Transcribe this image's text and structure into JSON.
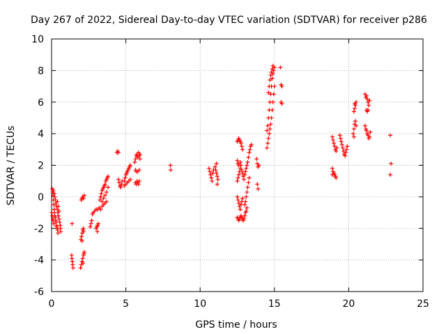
{
  "chart_data": {
    "type": "scatter",
    "title": "Day 267 of 2022, Sidereal Day-to-day VTEC variation (SDTVAR) for receiver p286",
    "xlabel": "GPS time / hours",
    "ylabel": "SDTVAR / TECUs",
    "xlim": [
      0,
      25
    ],
    "ylim": [
      -6,
      10
    ],
    "xticks": [
      0,
      5,
      10,
      15,
      20,
      25
    ],
    "yticks": [
      -6,
      -4,
      -2,
      0,
      2,
      4,
      6,
      8,
      10
    ],
    "grid": true,
    "marker": "+",
    "color": "#ff0000",
    "series": [
      {
        "name": "SDTVAR",
        "points": [
          [
            0.05,
            0.5
          ],
          [
            0.08,
            0.3
          ],
          [
            0.1,
            0.1
          ],
          [
            0.12,
            -0.2
          ],
          [
            0.15,
            -0.5
          ],
          [
            0.18,
            -0.8
          ],
          [
            0.2,
            -1.0
          ],
          [
            0.22,
            -1.2
          ],
          [
            0.25,
            -1.3
          ],
          [
            0.28,
            -1.5
          ],
          [
            0.3,
            -1.6
          ],
          [
            0.33,
            -1.8
          ],
          [
            0.35,
            -1.9
          ],
          [
            0.38,
            -2.0
          ],
          [
            0.4,
            -2.1
          ],
          [
            0.43,
            -2.3
          ],
          [
            0.12,
            0.4
          ],
          [
            0.18,
            0.2
          ],
          [
            0.22,
            0.0
          ],
          [
            0.26,
            -0.2
          ],
          [
            0.3,
            -0.4
          ],
          [
            0.34,
            -0.6
          ],
          [
            0.38,
            -0.8
          ],
          [
            0.42,
            -1.0
          ],
          [
            0.46,
            -1.2
          ],
          [
            0.5,
            -1.4
          ],
          [
            0.54,
            -1.6
          ],
          [
            0.58,
            -1.8
          ],
          [
            0.6,
            -2.0
          ],
          [
            0.62,
            -2.2
          ],
          [
            0.02,
            -1.0
          ],
          [
            0.05,
            -1.2
          ],
          [
            0.08,
            -1.4
          ],
          [
            0.1,
            -1.5
          ],
          [
            0.14,
            -1.7
          ],
          [
            0.4,
            -0.3
          ],
          [
            0.45,
            -0.6
          ],
          [
            0.5,
            -0.9
          ],
          [
            1.35,
            -3.7
          ],
          [
            1.37,
            -3.9
          ],
          [
            1.4,
            -4.1
          ],
          [
            1.42,
            -4.3
          ],
          [
            1.45,
            -4.5
          ],
          [
            1.38,
            -1.7
          ],
          [
            1.95,
            -4.5
          ],
          [
            2.0,
            -4.3
          ],
          [
            2.05,
            -4.1
          ],
          [
            2.1,
            -3.9
          ],
          [
            2.15,
            -3.7
          ],
          [
            2.18,
            -3.6
          ],
          [
            2.2,
            -3.5
          ],
          [
            2.12,
            -4.2
          ],
          [
            1.98,
            -2.7
          ],
          [
            2.02,
            -2.5
          ],
          [
            2.06,
            -2.3
          ],
          [
            2.1,
            -2.1
          ],
          [
            2.14,
            -2.0
          ],
          [
            2.05,
            -2.8
          ],
          [
            2.15,
            -2.2
          ],
          [
            2.0,
            -0.2
          ],
          [
            2.05,
            -0.1
          ],
          [
            2.1,
            0.0
          ],
          [
            2.15,
            -0.1
          ],
          [
            2.2,
            0.1
          ],
          [
            2.6,
            -1.9
          ],
          [
            2.65,
            -1.7
          ],
          [
            2.7,
            -1.5
          ],
          [
            2.75,
            -1.1
          ],
          [
            2.8,
            -1.0
          ],
          [
            2.9,
            -0.9
          ],
          [
            3.0,
            -0.8
          ],
          [
            3.0,
            -2.0
          ],
          [
            3.05,
            -1.9
          ],
          [
            3.1,
            -1.8
          ],
          [
            3.15,
            -1.7
          ],
          [
            3.08,
            -2.2
          ],
          [
            3.1,
            -0.8
          ],
          [
            3.2,
            -0.7
          ],
          [
            3.3,
            -0.8
          ],
          [
            3.4,
            -0.6
          ],
          [
            3.5,
            -0.5
          ],
          [
            3.6,
            -0.4
          ],
          [
            3.7,
            -0.3
          ],
          [
            3.25,
            -0.2
          ],
          [
            3.3,
            0.0
          ],
          [
            3.35,
            0.2
          ],
          [
            3.4,
            0.4
          ],
          [
            3.45,
            0.5
          ],
          [
            3.5,
            0.6
          ],
          [
            3.55,
            0.7
          ],
          [
            3.6,
            0.8
          ],
          [
            3.65,
            1.0
          ],
          [
            3.7,
            1.1
          ],
          [
            3.75,
            1.2
          ],
          [
            3.8,
            1.3
          ],
          [
            3.4,
            -0.3
          ],
          [
            3.5,
            -0.1
          ],
          [
            3.6,
            0.1
          ],
          [
            3.7,
            0.3
          ],
          [
            3.8,
            0.6
          ],
          [
            4.4,
            2.8
          ],
          [
            4.45,
            2.9
          ],
          [
            4.5,
            2.8
          ],
          [
            4.5,
            1.1
          ],
          [
            4.55,
            0.9
          ],
          [
            4.6,
            0.7
          ],
          [
            4.65,
            0.6
          ],
          [
            4.7,
            0.8
          ],
          [
            4.75,
            1.0
          ],
          [
            4.9,
            0.7
          ],
          [
            5.0,
            0.8
          ],
          [
            5.1,
            0.9
          ],
          [
            5.2,
            1.0
          ],
          [
            5.3,
            1.1
          ],
          [
            4.9,
            1.0
          ],
          [
            4.95,
            1.2
          ],
          [
            5.0,
            1.4
          ],
          [
            5.05,
            1.5
          ],
          [
            5.1,
            1.6
          ],
          [
            5.15,
            1.7
          ],
          [
            5.2,
            1.8
          ],
          [
            5.25,
            1.9
          ],
          [
            5.3,
            2.0
          ],
          [
            5.65,
            0.9
          ],
          [
            5.7,
            0.8
          ],
          [
            5.75,
            1.0
          ],
          [
            5.8,
            0.9
          ],
          [
            5.85,
            0.8
          ],
          [
            5.9,
            1.0
          ],
          [
            5.65,
            1.7
          ],
          [
            5.7,
            1.6
          ],
          [
            5.8,
            1.6
          ],
          [
            5.9,
            1.7
          ],
          [
            5.6,
            2.2
          ],
          [
            5.65,
            2.4
          ],
          [
            5.7,
            2.6
          ],
          [
            5.75,
            2.7
          ],
          [
            5.8,
            2.5
          ],
          [
            5.85,
            2.8
          ],
          [
            5.9,
            2.6
          ],
          [
            5.95,
            2.4
          ],
          [
            5.95,
            2.7
          ],
          [
            8.0,
            2.0
          ],
          [
            8.02,
            1.7
          ],
          [
            10.6,
            1.8
          ],
          [
            10.65,
            1.6
          ],
          [
            10.7,
            1.4
          ],
          [
            10.75,
            1.2
          ],
          [
            10.8,
            1.0
          ],
          [
            10.85,
            1.5
          ],
          [
            10.9,
            1.7
          ],
          [
            11.0,
            1.9
          ],
          [
            11.05,
            1.7
          ],
          [
            11.1,
            1.5
          ],
          [
            11.15,
            1.3
          ],
          [
            11.2,
            1.1
          ],
          [
            11.1,
            2.1
          ],
          [
            11.15,
            0.8
          ],
          [
            12.5,
            -1.3
          ],
          [
            12.55,
            -1.4
          ],
          [
            12.6,
            -1.5
          ],
          [
            12.65,
            -1.4
          ],
          [
            12.7,
            -1.3
          ],
          [
            12.75,
            -1.2
          ],
          [
            12.8,
            -1.3
          ],
          [
            12.85,
            -1.4
          ],
          [
            12.9,
            -1.5
          ],
          [
            12.95,
            -1.4
          ],
          [
            13.0,
            -1.2
          ],
          [
            13.05,
            -1.0
          ],
          [
            13.1,
            -0.9
          ],
          [
            13.15,
            -0.7
          ],
          [
            12.5,
            0.0
          ],
          [
            12.55,
            -0.2
          ],
          [
            12.6,
            -0.4
          ],
          [
            12.65,
            -0.6
          ],
          [
            12.7,
            -0.8
          ],
          [
            12.75,
            -0.5
          ],
          [
            12.8,
            -0.3
          ],
          [
            12.85,
            -0.1
          ],
          [
            12.5,
            1.0
          ],
          [
            12.55,
            1.2
          ],
          [
            12.6,
            1.4
          ],
          [
            12.65,
            1.6
          ],
          [
            12.7,
            1.8
          ],
          [
            12.75,
            2.0
          ],
          [
            12.8,
            1.7
          ],
          [
            12.85,
            1.5
          ],
          [
            12.9,
            1.3
          ],
          [
            12.95,
            1.1
          ],
          [
            12.5,
            2.3
          ],
          [
            12.55,
            2.1
          ],
          [
            12.6,
            2.0
          ],
          [
            12.7,
            2.2
          ],
          [
            12.5,
            3.5
          ],
          [
            12.55,
            3.6
          ],
          [
            12.6,
            3.7
          ],
          [
            12.65,
            3.6
          ],
          [
            12.7,
            3.5
          ],
          [
            12.75,
            3.4
          ],
          [
            12.8,
            3.2
          ],
          [
            12.85,
            3.0
          ],
          [
            13.0,
            1.4
          ],
          [
            13.05,
            1.6
          ],
          [
            13.1,
            1.8
          ],
          [
            13.15,
            2.0
          ],
          [
            13.2,
            2.2
          ],
          [
            13.25,
            2.5
          ],
          [
            13.3,
            2.8
          ],
          [
            13.35,
            3.0
          ],
          [
            13.4,
            3.2
          ],
          [
            13.45,
            3.3
          ],
          [
            13.0,
            -0.5
          ],
          [
            13.05,
            -0.3
          ],
          [
            13.1,
            0.0
          ],
          [
            13.15,
            0.3
          ],
          [
            13.2,
            0.6
          ],
          [
            13.25,
            0.9
          ],
          [
            13.3,
            1.2
          ],
          [
            13.8,
            2.4
          ],
          [
            13.85,
            2.1
          ],
          [
            13.9,
            1.9
          ],
          [
            13.85,
            0.8
          ],
          [
            13.9,
            0.5
          ],
          [
            13.95,
            2.0
          ],
          [
            14.5,
            3.1
          ],
          [
            14.55,
            3.4
          ],
          [
            14.6,
            3.7
          ],
          [
            14.65,
            4.0
          ],
          [
            14.7,
            4.3
          ],
          [
            14.75,
            4.6
          ],
          [
            14.8,
            5.0
          ],
          [
            14.85,
            5.5
          ],
          [
            14.9,
            6.0
          ],
          [
            14.95,
            6.5
          ],
          [
            15.0,
            7.0
          ],
          [
            14.5,
            4.2
          ],
          [
            14.55,
            4.5
          ],
          [
            14.6,
            5.0
          ],
          [
            14.65,
            5.5
          ],
          [
            14.7,
            6.0
          ],
          [
            14.75,
            6.5
          ],
          [
            14.8,
            7.0
          ],
          [
            14.85,
            7.5
          ],
          [
            14.9,
            7.8
          ],
          [
            14.95,
            8.0
          ],
          [
            15.0,
            8.2
          ],
          [
            14.6,
            6.6
          ],
          [
            14.65,
            7.0
          ],
          [
            14.7,
            7.4
          ],
          [
            14.75,
            7.7
          ],
          [
            14.8,
            7.9
          ],
          [
            14.85,
            8.1
          ],
          [
            14.9,
            8.3
          ],
          [
            15.4,
            8.2
          ],
          [
            15.45,
            7.1
          ],
          [
            15.5,
            7.0
          ],
          [
            15.45,
            6.0
          ],
          [
            15.5,
            5.9
          ],
          [
            18.9,
            1.8
          ],
          [
            18.95,
            1.6
          ],
          [
            19.0,
            1.5
          ],
          [
            19.05,
            1.4
          ],
          [
            19.1,
            1.3
          ],
          [
            19.15,
            1.2
          ],
          [
            18.9,
            1.4
          ],
          [
            18.9,
            3.8
          ],
          [
            18.95,
            3.6
          ],
          [
            19.0,
            3.4
          ],
          [
            19.05,
            3.2
          ],
          [
            19.1,
            3.0
          ],
          [
            19.15,
            2.9
          ],
          [
            19.2,
            3.1
          ],
          [
            19.4,
            3.9
          ],
          [
            19.45,
            3.7
          ],
          [
            19.5,
            3.5
          ],
          [
            19.55,
            3.3
          ],
          [
            19.6,
            3.1
          ],
          [
            19.65,
            2.9
          ],
          [
            19.7,
            2.7
          ],
          [
            19.75,
            2.6
          ],
          [
            19.8,
            2.8
          ],
          [
            19.85,
            3.0
          ],
          [
            19.9,
            3.2
          ],
          [
            20.3,
            4.0
          ],
          [
            20.35,
            4.3
          ],
          [
            20.4,
            4.6
          ],
          [
            20.45,
            4.8
          ],
          [
            20.5,
            4.5
          ],
          [
            20.35,
            3.8
          ],
          [
            20.35,
            5.4
          ],
          [
            20.4,
            5.6
          ],
          [
            20.45,
            5.8
          ],
          [
            20.5,
            6.0
          ],
          [
            20.4,
            5.9
          ],
          [
            21.1,
            6.5
          ],
          [
            21.15,
            6.3
          ],
          [
            21.2,
            6.4
          ],
          [
            21.25,
            6.2
          ],
          [
            21.3,
            6.0
          ],
          [
            21.35,
            5.8
          ],
          [
            21.4,
            6.1
          ],
          [
            21.2,
            5.5
          ],
          [
            21.25,
            5.4
          ],
          [
            21.3,
            5.5
          ],
          [
            21.1,
            4.5
          ],
          [
            21.15,
            4.3
          ],
          [
            21.2,
            4.2
          ],
          [
            21.25,
            4.0
          ],
          [
            21.3,
            3.9
          ],
          [
            21.35,
            3.7
          ],
          [
            21.4,
            3.8
          ],
          [
            21.45,
            4.1
          ],
          [
            22.8,
            3.9
          ],
          [
            22.85,
            2.1
          ],
          [
            22.8,
            1.4
          ]
        ]
      }
    ]
  }
}
